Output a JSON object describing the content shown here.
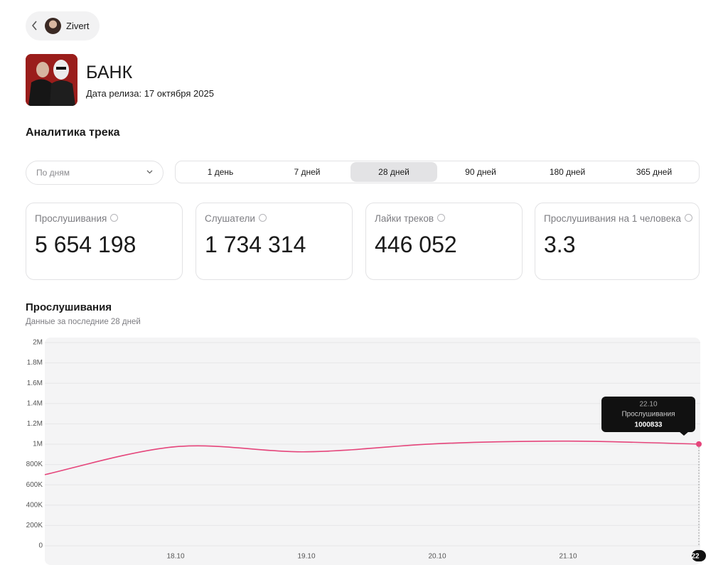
{
  "header": {
    "back_label": "Zivert",
    "title": "БАНК",
    "release_date": "Дата релиза: 17 октября 2025"
  },
  "section_title": "Аналитика трека",
  "granularity": "По дням",
  "periods": [
    "1 день",
    "7 дней",
    "28 дней",
    "90 дней",
    "180 дней",
    "365 дней"
  ],
  "metrics": [
    {
      "label": "Прослушивания",
      "value": "5 654 198"
    },
    {
      "label": "Слушатели",
      "value": "1 734 314"
    },
    {
      "label": "Лайки треков",
      "value": "446 052"
    },
    {
      "label": "Прослушивания на 1 человека",
      "value": "3.3"
    }
  ],
  "chart_data": {
    "type": "line",
    "title": "Прослушивания",
    "subtitle": "Данные за последние 28 дней",
    "categories": [
      null,
      "18.10",
      "19.10",
      "20.10",
      "21.10",
      "22"
    ],
    "series": [
      {
        "name": "Прослушивания",
        "color": "#e5457b",
        "values": [
          700000,
          975000,
          925000,
          1005000,
          1030000,
          1000833
        ]
      }
    ],
    "ylim": [
      0,
      2000000
    ],
    "yticks": [
      0,
      {
        "value": 200000,
        "label": "200K"
      },
      {
        "value": 400000,
        "label": "400K"
      },
      {
        "value": 600000,
        "label": "600K"
      },
      {
        "value": 800000,
        "label": "800K"
      },
      {
        "value": 1000000,
        "label": "1M"
      },
      {
        "value": 1200000,
        "label": "1.2M"
      },
      {
        "value": 1400000,
        "label": "1.4M"
      },
      {
        "value": 1600000,
        "label": "1.6M"
      },
      {
        "value": 1800000,
        "label": "1.8M"
      },
      {
        "value": 2000000,
        "label": "2M"
      }
    ],
    "grid": true,
    "tooltip": {
      "x": "22.10"
    }
  }
}
